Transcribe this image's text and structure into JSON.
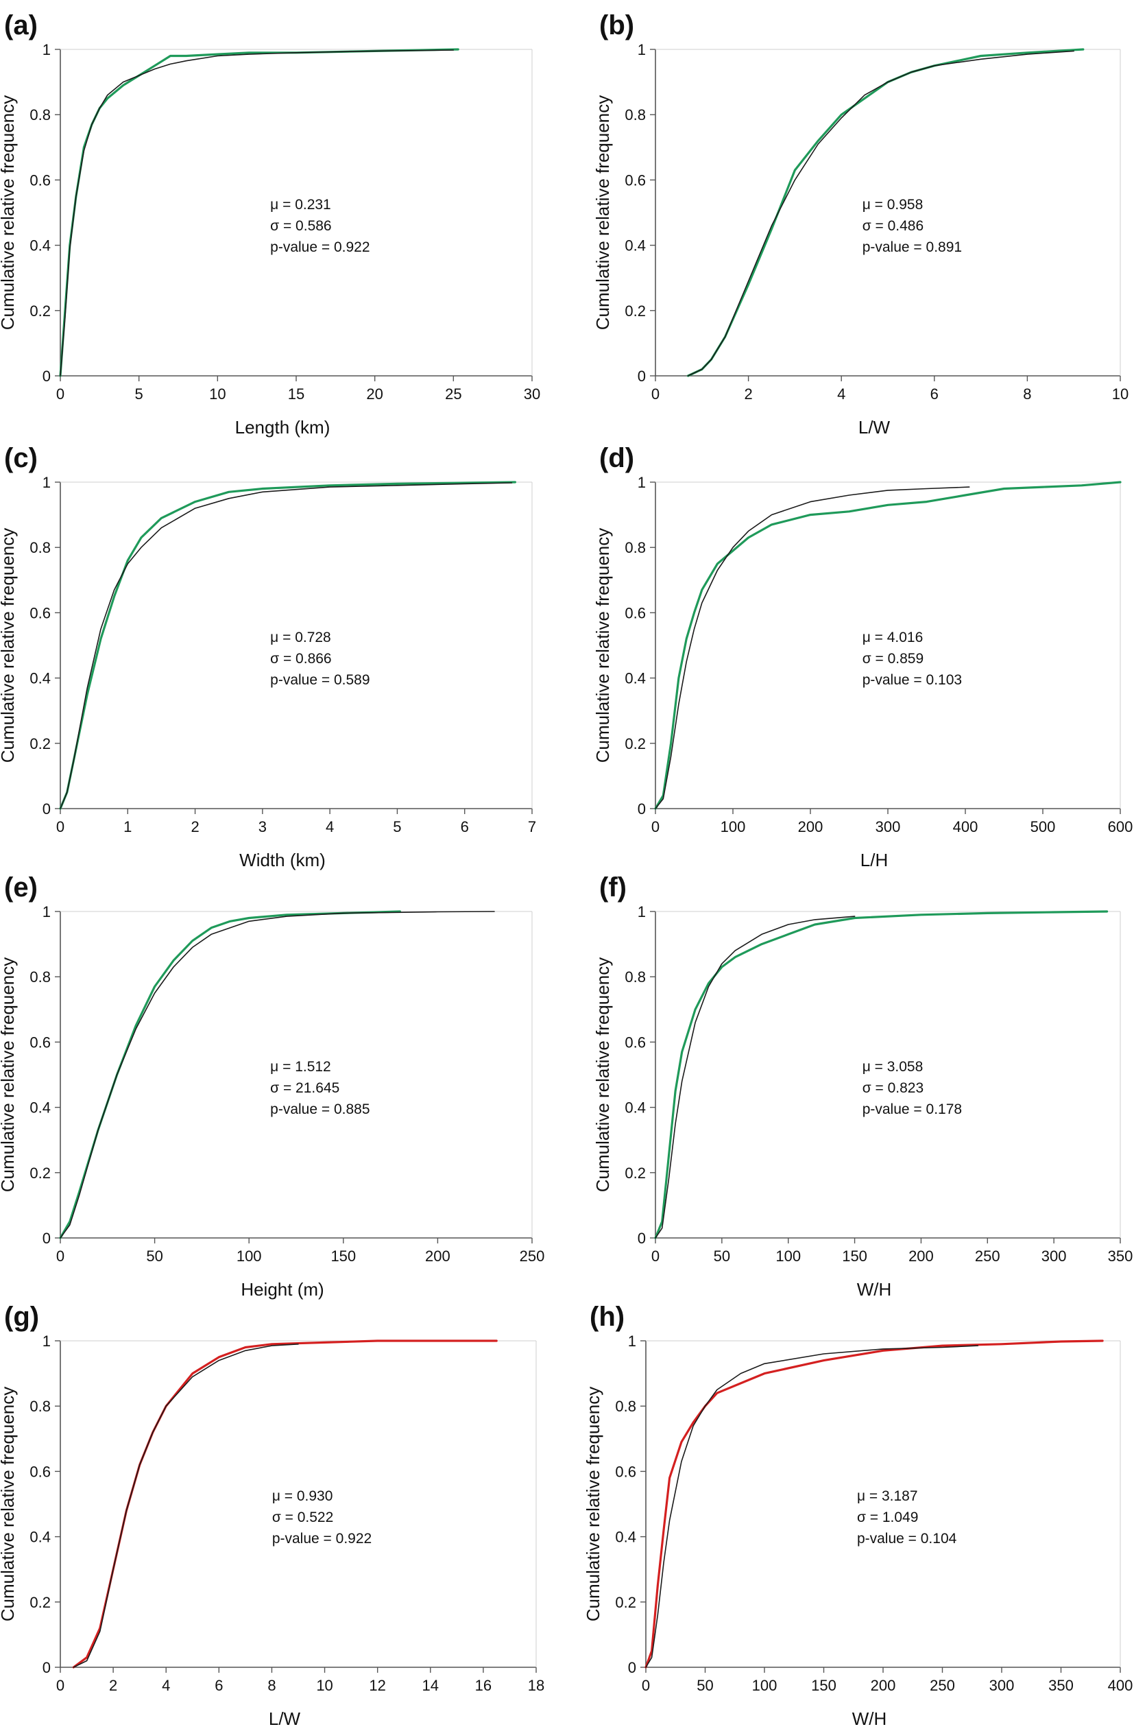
{
  "figure": {
    "panels": [
      {
        "letter": "(a)",
        "stats": [
          "μ = 0.231",
          "σ = 0.586",
          "p-value = 0.922"
        ]
      },
      {
        "letter": "(b)",
        "stats": [
          "μ = 0.958",
          "σ = 0.486",
          "p-value = 0.891"
        ]
      },
      {
        "letter": "(c)",
        "stats": [
          "μ = 0.728",
          "σ = 0.866",
          "p-value = 0.589"
        ]
      },
      {
        "letter": "(d)",
        "stats": [
          "μ = 4.016",
          "σ = 0.859",
          "p-value = 0.103"
        ]
      },
      {
        "letter": "(e)",
        "stats": [
          "μ = 1.512",
          "σ = 21.645",
          "p-value = 0.885"
        ]
      },
      {
        "letter": "(f)",
        "stats": [
          "μ = 3.058",
          "σ = 0.823",
          "p-value = 0.178"
        ]
      },
      {
        "letter": "(g)",
        "stats": [
          "μ = 0.930",
          "σ = 0.522",
          "p-value = 0.922"
        ]
      },
      {
        "letter": "(h)",
        "stats": [
          "μ = 3.187",
          "σ = 1.049",
          "p-value = 0.104"
        ]
      }
    ]
  },
  "colors": {
    "observed_green": "#1f9a5a",
    "observed_red": "#d42020",
    "fitted_black": "#1a1a1a",
    "axis": "#555555",
    "text": "#111111"
  },
  "chart_data": [
    {
      "type": "line",
      "panel": "(a)",
      "xlabel": "Length (km)",
      "ylabel": "Cumulative relative frequency",
      "xlim": [
        0,
        30
      ],
      "ylim": [
        0,
        1
      ],
      "xticks": [
        0,
        5,
        10,
        15,
        20,
        25,
        30
      ],
      "yticks": [
        0,
        0.2,
        0.4,
        0.6,
        0.8,
        1
      ],
      "grid": false,
      "series": [
        {
          "role": "observed",
          "color": "#1f9a5a",
          "x": [
            0,
            0.3,
            0.6,
            1,
            1.5,
            2,
            2.5,
            3,
            4,
            5,
            6,
            7,
            8,
            10,
            12,
            15,
            20,
            25.3
          ],
          "y": [
            0,
            0.2,
            0.4,
            0.55,
            0.7,
            0.77,
            0.82,
            0.85,
            0.89,
            0.92,
            0.95,
            0.98,
            0.98,
            0.985,
            0.99,
            0.99,
            0.995,
            1
          ]
        },
        {
          "role": "fitted",
          "color": "#1a1a1a",
          "x": [
            0,
            0.3,
            0.6,
            1,
            1.5,
            2,
            2.5,
            3,
            4,
            5,
            6,
            7,
            8,
            10,
            12,
            15,
            20,
            25
          ],
          "y": [
            0,
            0.18,
            0.39,
            0.55,
            0.69,
            0.77,
            0.82,
            0.86,
            0.9,
            0.92,
            0.94,
            0.955,
            0.965,
            0.98,
            0.985,
            0.99,
            0.995,
            0.998
          ]
        }
      ]
    },
    {
      "type": "line",
      "panel": "(b)",
      "xlabel": "L/W",
      "ylabel": "Cumulative relative frequency",
      "xlim": [
        0,
        10
      ],
      "ylim": [
        0,
        1
      ],
      "xticks": [
        0,
        2,
        4,
        6,
        8,
        10
      ],
      "yticks": [
        0,
        0.2,
        0.4,
        0.6,
        0.8,
        1
      ],
      "grid": false,
      "series": [
        {
          "role": "observed",
          "color": "#1f9a5a",
          "x": [
            0.7,
            1,
            1.2,
            1.5,
            2,
            2.5,
            3,
            3.5,
            4,
            4.5,
            5,
            5.5,
            6,
            7,
            8,
            9.2
          ],
          "y": [
            0,
            0.02,
            0.05,
            0.12,
            0.28,
            0.45,
            0.63,
            0.72,
            0.8,
            0.85,
            0.9,
            0.93,
            0.95,
            0.98,
            0.99,
            1
          ]
        },
        {
          "role": "fitted",
          "color": "#1a1a1a",
          "x": [
            0.7,
            1,
            1.2,
            1.5,
            2,
            2.5,
            3,
            3.5,
            4,
            4.5,
            5,
            5.5,
            6,
            7,
            8,
            9
          ],
          "y": [
            0,
            0.02,
            0.05,
            0.12,
            0.29,
            0.46,
            0.6,
            0.71,
            0.79,
            0.86,
            0.9,
            0.93,
            0.95,
            0.97,
            0.985,
            0.995
          ]
        }
      ]
    },
    {
      "type": "line",
      "panel": "(c)",
      "xlabel": "Width (km)",
      "ylabel": "Cumulative relative frequency",
      "xlim": [
        0,
        7
      ],
      "ylim": [
        0,
        1
      ],
      "xticks": [
        0,
        1,
        2,
        3,
        4,
        5,
        6,
        7
      ],
      "yticks": [
        0,
        0.2,
        0.4,
        0.6,
        0.8,
        1
      ],
      "grid": false,
      "series": [
        {
          "role": "observed",
          "color": "#1f9a5a",
          "x": [
            0,
            0.1,
            0.2,
            0.4,
            0.6,
            0.8,
            1,
            1.2,
            1.5,
            2,
            2.5,
            3,
            4,
            5,
            6,
            6.75
          ],
          "y": [
            0,
            0.05,
            0.15,
            0.35,
            0.52,
            0.65,
            0.76,
            0.83,
            0.89,
            0.94,
            0.97,
            0.98,
            0.99,
            0.995,
            0.998,
            1
          ]
        },
        {
          "role": "fitted",
          "color": "#1a1a1a",
          "x": [
            0,
            0.1,
            0.2,
            0.4,
            0.6,
            0.8,
            1,
            1.2,
            1.5,
            2,
            2.5,
            3,
            4,
            5,
            6,
            6.7
          ],
          "y": [
            0,
            0.05,
            0.15,
            0.37,
            0.55,
            0.67,
            0.75,
            0.8,
            0.86,
            0.92,
            0.95,
            0.97,
            0.985,
            0.99,
            0.995,
            0.998
          ]
        }
      ]
    },
    {
      "type": "line",
      "panel": "(d)",
      "xlabel": "L/H",
      "ylabel": "Cumulative relative frequency",
      "xlim": [
        0,
        600
      ],
      "ylim": [
        0,
        1
      ],
      "xticks": [
        0,
        100,
        200,
        300,
        400,
        500,
        600
      ],
      "yticks": [
        0,
        0.2,
        0.4,
        0.6,
        0.8,
        1
      ],
      "grid": false,
      "series": [
        {
          "role": "observed",
          "color": "#1f9a5a",
          "x": [
            0,
            10,
            20,
            30,
            40,
            50,
            60,
            80,
            100,
            120,
            150,
            200,
            250,
            300,
            350,
            400,
            450,
            500,
            550,
            600
          ],
          "y": [
            0,
            0.04,
            0.2,
            0.4,
            0.52,
            0.6,
            0.67,
            0.75,
            0.79,
            0.83,
            0.87,
            0.9,
            0.91,
            0.93,
            0.94,
            0.96,
            0.98,
            0.985,
            0.99,
            1
          ]
        },
        {
          "role": "fitted",
          "color": "#1a1a1a",
          "x": [
            0,
            10,
            20,
            30,
            40,
            50,
            60,
            80,
            100,
            120,
            150,
            200,
            250,
            300,
            350,
            405
          ],
          "y": [
            0,
            0.03,
            0.16,
            0.32,
            0.45,
            0.55,
            0.63,
            0.73,
            0.8,
            0.85,
            0.9,
            0.94,
            0.96,
            0.975,
            0.98,
            0.985
          ]
        }
      ]
    },
    {
      "type": "line",
      "panel": "(e)",
      "xlabel": "Height (m)",
      "ylabel": "Cumulative relative frequency",
      "xlim": [
        0,
        250
      ],
      "ylim": [
        0,
        1
      ],
      "xticks": [
        0,
        50,
        100,
        150,
        200,
        250
      ],
      "yticks": [
        0,
        0.2,
        0.4,
        0.6,
        0.8,
        1
      ],
      "grid": false,
      "series": [
        {
          "role": "observed",
          "color": "#1f9a5a",
          "x": [
            0,
            5,
            10,
            20,
            30,
            40,
            50,
            60,
            70,
            80,
            90,
            100,
            120,
            150,
            180
          ],
          "y": [
            0,
            0.05,
            0.14,
            0.33,
            0.5,
            0.65,
            0.77,
            0.85,
            0.91,
            0.95,
            0.97,
            0.98,
            0.99,
            0.995,
            1
          ]
        },
        {
          "role": "fitted",
          "color": "#1a1a1a",
          "x": [
            0,
            5,
            10,
            20,
            30,
            40,
            50,
            60,
            70,
            80,
            90,
            100,
            120,
            150,
            200,
            230
          ],
          "y": [
            0,
            0.04,
            0.13,
            0.33,
            0.5,
            0.64,
            0.75,
            0.83,
            0.89,
            0.93,
            0.95,
            0.97,
            0.985,
            0.995,
            0.999,
            1
          ]
        }
      ]
    },
    {
      "type": "line",
      "panel": "(f)",
      "xlabel": "W/H",
      "ylabel": "Cumulative relative frequency",
      "xlim": [
        0,
        350
      ],
      "ylim": [
        0,
        1
      ],
      "xticks": [
        0,
        50,
        100,
        150,
        200,
        250,
        300,
        350
      ],
      "yticks": [
        0,
        0.2,
        0.4,
        0.6,
        0.8,
        1
      ],
      "grid": false,
      "series": [
        {
          "role": "observed",
          "color": "#1f9a5a",
          "x": [
            0,
            5,
            10,
            15,
            20,
            30,
            40,
            50,
            60,
            80,
            100,
            120,
            150,
            200,
            250,
            300,
            340
          ],
          "y": [
            0,
            0.05,
            0.25,
            0.45,
            0.57,
            0.7,
            0.78,
            0.83,
            0.86,
            0.9,
            0.93,
            0.96,
            0.98,
            0.99,
            0.995,
            0.998,
            1
          ]
        },
        {
          "role": "fitted",
          "color": "#1a1a1a",
          "x": [
            0,
            5,
            10,
            15,
            20,
            30,
            40,
            50,
            60,
            80,
            100,
            120,
            150
          ],
          "y": [
            0,
            0.03,
            0.18,
            0.35,
            0.48,
            0.66,
            0.77,
            0.84,
            0.88,
            0.93,
            0.96,
            0.975,
            0.985
          ]
        }
      ]
    },
    {
      "type": "line",
      "panel": "(g)",
      "xlabel": "L/W",
      "ylabel": "Cumulative relative frequency",
      "xlim": [
        0,
        18
      ],
      "ylim": [
        0,
        1
      ],
      "xticks": [
        0,
        2,
        4,
        6,
        8,
        10,
        12,
        14,
        16,
        18
      ],
      "yticks": [
        0,
        0.2,
        0.4,
        0.6,
        0.8,
        1
      ],
      "grid": false,
      "series": [
        {
          "role": "observed",
          "color": "#d42020",
          "x": [
            0.5,
            1,
            1.5,
            2,
            2.5,
            3,
            3.5,
            4,
            5,
            6,
            7,
            8,
            10,
            12,
            14,
            16.5
          ],
          "y": [
            0,
            0.03,
            0.12,
            0.3,
            0.48,
            0.62,
            0.72,
            0.8,
            0.9,
            0.95,
            0.98,
            0.99,
            0.995,
            1,
            1,
            1
          ]
        },
        {
          "role": "fitted",
          "color": "#1a1a1a",
          "x": [
            0.5,
            1,
            1.5,
            2,
            2.5,
            3,
            3.5,
            4,
            5,
            6,
            7,
            8,
            9
          ],
          "y": [
            0,
            0.02,
            0.11,
            0.3,
            0.48,
            0.62,
            0.72,
            0.8,
            0.89,
            0.94,
            0.97,
            0.985,
            0.99
          ]
        }
      ]
    },
    {
      "type": "line",
      "panel": "(h)",
      "xlabel": "W/H",
      "ylabel": "Cumulative relative frequency",
      "xlim": [
        0,
        400
      ],
      "ylim": [
        0,
        1
      ],
      "xticks": [
        0,
        50,
        100,
        150,
        200,
        250,
        300,
        350,
        400
      ],
      "yticks": [
        0,
        0.2,
        0.4,
        0.6,
        0.8,
        1
      ],
      "grid": false,
      "series": [
        {
          "role": "observed",
          "color": "#d42020",
          "x": [
            0,
            5,
            10,
            15,
            20,
            30,
            40,
            50,
            60,
            80,
            100,
            150,
            200,
            250,
            300,
            350,
            385
          ],
          "y": [
            0,
            0.05,
            0.25,
            0.42,
            0.58,
            0.69,
            0.75,
            0.8,
            0.84,
            0.87,
            0.9,
            0.94,
            0.97,
            0.985,
            0.99,
            0.998,
            1
          ]
        },
        {
          "role": "fitted",
          "color": "#1a1a1a",
          "x": [
            0,
            5,
            10,
            15,
            20,
            30,
            40,
            50,
            60,
            80,
            100,
            150,
            200,
            250,
            280
          ],
          "y": [
            0,
            0.03,
            0.16,
            0.32,
            0.45,
            0.63,
            0.74,
            0.8,
            0.85,
            0.9,
            0.93,
            0.96,
            0.975,
            0.98,
            0.985
          ]
        }
      ]
    }
  ]
}
